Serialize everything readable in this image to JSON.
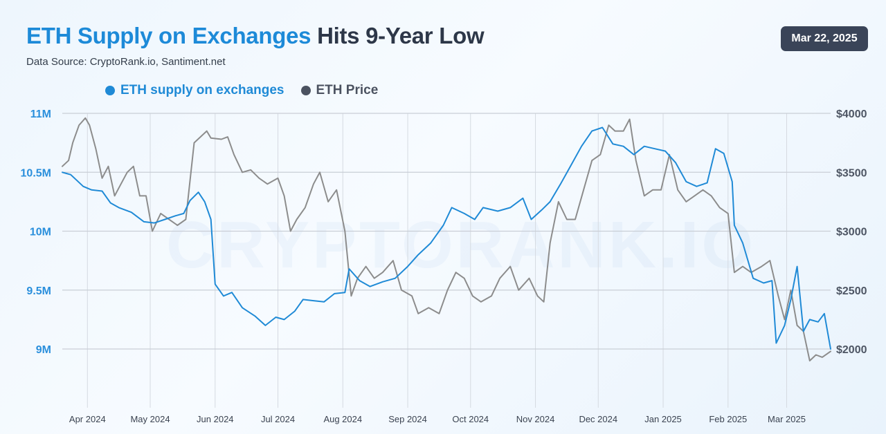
{
  "title": {
    "highlight": "ETH Supply on Exchanges",
    "rest": "Hits 9-Year Low"
  },
  "source": "Data Source: CryptoRank.io, Santiment.net",
  "date": "Mar 22, 2025",
  "watermark": "CRYPTORANK.IO",
  "colors": {
    "supply": "#1f8ad6",
    "price": "#8c8c8c",
    "supply_legend": "#1f8ad6",
    "price_legend": "#4b5260",
    "title_highlight": "#1d8ad8",
    "grid": "#c9ced6"
  },
  "chart_data": {
    "type": "line",
    "x": [
      "2024-03-20",
      "2025-03-22"
    ],
    "y_left": {
      "label": "ETH supply on exchanges",
      "ylim": [
        8500000,
        11000000
      ],
      "ticks": [
        9000000,
        9500000,
        10000000,
        10500000,
        11000000
      ],
      "tick_labels": [
        "9M",
        "9.5M",
        "10M",
        "10.5M",
        "11M"
      ]
    },
    "y_right": {
      "label": "ETH Price",
      "ylim": [
        1500,
        4000
      ],
      "ticks": [
        2000,
        2500,
        3000,
        3500,
        4000
      ],
      "tick_labels": [
        "$2000",
        "$2500",
        "$3000",
        "$3500",
        "$4000"
      ]
    },
    "x_ticks": [
      {
        "date": "2024-04-01",
        "label": "Apr 2024"
      },
      {
        "date": "2024-05-01",
        "label": "May 2024"
      },
      {
        "date": "2024-06-01",
        "label": "Jun 2024"
      },
      {
        "date": "2024-07-01",
        "label": "Jul 2024"
      },
      {
        "date": "2024-08-01",
        "label": "Aug 2024"
      },
      {
        "date": "2024-09-01",
        "label": "Sep 2024"
      },
      {
        "date": "2024-10-01",
        "label": "Oct 2024"
      },
      {
        "date": "2024-11-01",
        "label": "Nov 2024"
      },
      {
        "date": "2024-12-01",
        "label": "Dec 2024"
      },
      {
        "date": "2025-01-01",
        "label": "Jan 2025"
      },
      {
        "date": "2025-02-01",
        "label": "Feb 2025"
      },
      {
        "date": "2025-03-01",
        "label": "Mar 2025"
      }
    ],
    "legend": "top-left",
    "grid": true,
    "series": [
      {
        "name": "ETH supply on exchanges",
        "axis": "left",
        "points": [
          [
            "2024-03-20",
            10500000
          ],
          [
            "2024-03-22",
            10490000
          ],
          [
            "2024-03-24",
            10480000
          ],
          [
            "2024-03-27",
            10430000
          ],
          [
            "2024-03-30",
            10380000
          ],
          [
            "2024-04-03",
            10350000
          ],
          [
            "2024-04-08",
            10340000
          ],
          [
            "2024-04-12",
            10240000
          ],
          [
            "2024-04-16",
            10200000
          ],
          [
            "2024-04-22",
            10160000
          ],
          [
            "2024-04-28",
            10080000
          ],
          [
            "2024-05-03",
            10070000
          ],
          [
            "2024-05-08",
            10100000
          ],
          [
            "2024-05-13",
            10130000
          ],
          [
            "2024-05-17",
            10150000
          ],
          [
            "2024-05-20",
            10260000
          ],
          [
            "2024-05-24",
            10330000
          ],
          [
            "2024-05-27",
            10250000
          ],
          [
            "2024-05-30",
            10100000
          ],
          [
            "2024-06-01",
            9550000
          ],
          [
            "2024-06-05",
            9450000
          ],
          [
            "2024-06-09",
            9480000
          ],
          [
            "2024-06-14",
            9350000
          ],
          [
            "2024-06-20",
            9280000
          ],
          [
            "2024-06-25",
            9200000
          ],
          [
            "2024-06-30",
            9270000
          ],
          [
            "2024-07-04",
            9250000
          ],
          [
            "2024-07-09",
            9320000
          ],
          [
            "2024-07-13",
            9420000
          ],
          [
            "2024-07-18",
            9410000
          ],
          [
            "2024-07-23",
            9400000
          ],
          [
            "2024-07-28",
            9470000
          ],
          [
            "2024-08-02",
            9480000
          ],
          [
            "2024-08-04",
            9680000
          ],
          [
            "2024-08-09",
            9580000
          ],
          [
            "2024-08-14",
            9530000
          ],
          [
            "2024-08-20",
            9570000
          ],
          [
            "2024-08-26",
            9600000
          ],
          [
            "2024-09-01",
            9700000
          ],
          [
            "2024-09-06",
            9800000
          ],
          [
            "2024-09-12",
            9900000
          ],
          [
            "2024-09-18",
            10050000
          ],
          [
            "2024-09-22",
            10200000
          ],
          [
            "2024-09-28",
            10150000
          ],
          [
            "2024-10-03",
            10100000
          ],
          [
            "2024-10-07",
            10200000
          ],
          [
            "2024-10-14",
            10170000
          ],
          [
            "2024-10-20",
            10200000
          ],
          [
            "2024-10-26",
            10280000
          ],
          [
            "2024-10-30",
            10100000
          ],
          [
            "2024-11-04",
            10180000
          ],
          [
            "2024-11-08",
            10250000
          ],
          [
            "2024-11-13",
            10400000
          ],
          [
            "2024-11-18",
            10560000
          ],
          [
            "2024-11-23",
            10720000
          ],
          [
            "2024-11-28",
            10850000
          ],
          [
            "2024-12-03",
            10880000
          ],
          [
            "2024-12-08",
            10740000
          ],
          [
            "2024-12-13",
            10720000
          ],
          [
            "2024-12-18",
            10650000
          ],
          [
            "2024-12-23",
            10720000
          ],
          [
            "2024-12-28",
            10700000
          ],
          [
            "2025-01-02",
            10680000
          ],
          [
            "2025-01-07",
            10580000
          ],
          [
            "2025-01-12",
            10420000
          ],
          [
            "2025-01-17",
            10380000
          ],
          [
            "2025-01-22",
            10410000
          ],
          [
            "2025-01-26",
            10700000
          ],
          [
            "2025-01-30",
            10660000
          ],
          [
            "2025-02-03",
            10420000
          ],
          [
            "2025-02-04",
            10050000
          ],
          [
            "2025-02-08",
            9900000
          ],
          [
            "2025-02-13",
            9600000
          ],
          [
            "2025-02-18",
            9560000
          ],
          [
            "2025-02-22",
            9580000
          ],
          [
            "2025-02-24",
            9050000
          ],
          [
            "2025-02-28",
            9200000
          ],
          [
            "2025-03-03",
            9420000
          ],
          [
            "2025-03-06",
            9700000
          ],
          [
            "2025-03-09",
            9150000
          ],
          [
            "2025-03-12",
            9250000
          ],
          [
            "2025-03-16",
            9230000
          ],
          [
            "2025-03-19",
            9300000
          ],
          [
            "2025-03-22",
            9000000
          ]
        ]
      },
      {
        "name": "ETH Price",
        "axis": "right",
        "points": [
          [
            "2024-03-20",
            3550
          ],
          [
            "2024-03-23",
            3600
          ],
          [
            "2024-03-25",
            3750
          ],
          [
            "2024-03-28",
            3900
          ],
          [
            "2024-03-31",
            3960
          ],
          [
            "2024-04-02",
            3900
          ],
          [
            "2024-04-05",
            3700
          ],
          [
            "2024-04-08",
            3450
          ],
          [
            "2024-04-11",
            3550
          ],
          [
            "2024-04-14",
            3300
          ],
          [
            "2024-04-17",
            3400
          ],
          [
            "2024-04-20",
            3500
          ],
          [
            "2024-04-23",
            3550
          ],
          [
            "2024-04-26",
            3300
          ],
          [
            "2024-04-29",
            3300
          ],
          [
            "2024-05-02",
            3000
          ],
          [
            "2024-05-06",
            3150
          ],
          [
            "2024-05-10",
            3100
          ],
          [
            "2024-05-14",
            3050
          ],
          [
            "2024-05-18",
            3100
          ],
          [
            "2024-05-22",
            3750
          ],
          [
            "2024-05-25",
            3800
          ],
          [
            "2024-05-28",
            3850
          ],
          [
            "2024-05-30",
            3790
          ],
          [
            "2024-06-04",
            3780
          ],
          [
            "2024-06-07",
            3800
          ],
          [
            "2024-06-10",
            3650
          ],
          [
            "2024-06-14",
            3500
          ],
          [
            "2024-06-18",
            3520
          ],
          [
            "2024-06-22",
            3450
          ],
          [
            "2024-06-26",
            3400
          ],
          [
            "2024-07-01",
            3450
          ],
          [
            "2024-07-04",
            3300
          ],
          [
            "2024-07-07",
            3000
          ],
          [
            "2024-07-10",
            3100
          ],
          [
            "2024-07-14",
            3200
          ],
          [
            "2024-07-18",
            3400
          ],
          [
            "2024-07-21",
            3500
          ],
          [
            "2024-07-25",
            3250
          ],
          [
            "2024-07-29",
            3350
          ],
          [
            "2024-08-02",
            3000
          ],
          [
            "2024-08-05",
            2450
          ],
          [
            "2024-08-08",
            2600
          ],
          [
            "2024-08-12",
            2700
          ],
          [
            "2024-08-16",
            2600
          ],
          [
            "2024-08-20",
            2650
          ],
          [
            "2024-08-25",
            2750
          ],
          [
            "2024-08-29",
            2500
          ],
          [
            "2024-09-03",
            2450
          ],
          [
            "2024-09-06",
            2300
          ],
          [
            "2024-09-11",
            2350
          ],
          [
            "2024-09-16",
            2300
          ],
          [
            "2024-09-20",
            2500
          ],
          [
            "2024-09-24",
            2650
          ],
          [
            "2024-09-28",
            2600
          ],
          [
            "2024-10-02",
            2450
          ],
          [
            "2024-10-06",
            2400
          ],
          [
            "2024-10-11",
            2450
          ],
          [
            "2024-10-15",
            2600
          ],
          [
            "2024-10-20",
            2700
          ],
          [
            "2024-10-24",
            2500
          ],
          [
            "2024-10-29",
            2600
          ],
          [
            "2024-11-02",
            2450
          ],
          [
            "2024-11-05",
            2400
          ],
          [
            "2024-11-08",
            2900
          ],
          [
            "2024-11-12",
            3250
          ],
          [
            "2024-11-16",
            3100
          ],
          [
            "2024-11-20",
            3100
          ],
          [
            "2024-11-24",
            3350
          ],
          [
            "2024-11-28",
            3600
          ],
          [
            "2024-12-02",
            3650
          ],
          [
            "2024-12-06",
            3900
          ],
          [
            "2024-12-09",
            3850
          ],
          [
            "2024-12-13",
            3850
          ],
          [
            "2024-12-16",
            3950
          ],
          [
            "2024-12-19",
            3600
          ],
          [
            "2024-12-23",
            3300
          ],
          [
            "2024-12-27",
            3350
          ],
          [
            "2024-12-31",
            3350
          ],
          [
            "2025-01-04",
            3650
          ],
          [
            "2025-01-08",
            3350
          ],
          [
            "2025-01-12",
            3250
          ],
          [
            "2025-01-16",
            3300
          ],
          [
            "2025-01-20",
            3350
          ],
          [
            "2025-01-24",
            3300
          ],
          [
            "2025-01-28",
            3200
          ],
          [
            "2025-02-01",
            3150
          ],
          [
            "2025-02-04",
            2650
          ],
          [
            "2025-02-08",
            2700
          ],
          [
            "2025-02-12",
            2650
          ],
          [
            "2025-02-17",
            2700
          ],
          [
            "2025-02-21",
            2750
          ],
          [
            "2025-02-25",
            2450
          ],
          [
            "2025-02-28",
            2250
          ],
          [
            "2025-03-03",
            2500
          ],
          [
            "2025-03-06",
            2200
          ],
          [
            "2025-03-09",
            2150
          ],
          [
            "2025-03-12",
            1900
          ],
          [
            "2025-03-15",
            1950
          ],
          [
            "2025-03-18",
            1930
          ],
          [
            "2025-03-22",
            1980
          ]
        ]
      }
    ]
  }
}
